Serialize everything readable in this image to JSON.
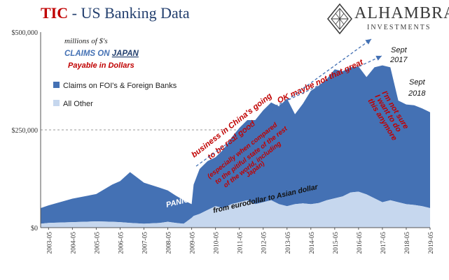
{
  "header": {
    "title_prefix": "TIC",
    "title_rest": " - US Banking Data",
    "logo_name": "ALHAMBRA",
    "logo_sub": "INVESTMENTS"
  },
  "colors": {
    "all_other": "#c6d7ee",
    "foreign_banks": "#4471b4",
    "annotation_red": "#c00000",
    "title_blue": "#233f6e"
  },
  "chart_data": {
    "type": "area",
    "stacked": true,
    "units_note": "millions of $'s",
    "subtitle_prefix": "CLAIMS ON ",
    "subtitle_country": "JAPAN",
    "subtitle_sub": "Payable in Dollars",
    "y_ticks": [
      "$0",
      "$250,000",
      "$500,000"
    ],
    "ylim": [
      0,
      500000
    ],
    "grid": "horizontal dashed at $250,000",
    "x_ticks": [
      "2003-05",
      "2004-05",
      "2005-05",
      "2006-05",
      "2007-05",
      "2008-05",
      "2009-05",
      "2010-05",
      "2011-05",
      "2012-05",
      "2013-05",
      "2014-05",
      "2015-05",
      "2016-05",
      "2017-05",
      "2018-05",
      "2019-05"
    ],
    "x": [
      "2003-01",
      "2003-05",
      "2004-05",
      "2005-05",
      "2006-01",
      "2006-05",
      "2006-10",
      "2007-05",
      "2008-01",
      "2008-05",
      "2008-09",
      "2009-01",
      "2009-05",
      "2009-06",
      "2009-09",
      "2010-01",
      "2010-05",
      "2010-09",
      "2011-01",
      "2011-05",
      "2011-09",
      "2012-01",
      "2012-05",
      "2012-09",
      "2013-01",
      "2013-05",
      "2013-09",
      "2014-01",
      "2014-05",
      "2014-09",
      "2015-01",
      "2015-05",
      "2015-09",
      "2016-01",
      "2016-05",
      "2016-09",
      "2017-01",
      "2017-05",
      "2017-09",
      "2018-01",
      "2018-05",
      "2018-09",
      "2019-01",
      "2019-05"
    ],
    "series": [
      {
        "name": "All Other",
        "values": [
          10000,
          12000,
          14000,
          16000,
          15000,
          14000,
          12000,
          10000,
          12000,
          15000,
          12000,
          10000,
          25000,
          30000,
          35000,
          45000,
          55000,
          50000,
          60000,
          65000,
          70000,
          60000,
          65000,
          70000,
          60000,
          55000,
          60000,
          62000,
          60000,
          63000,
          70000,
          75000,
          80000,
          90000,
          92000,
          85000,
          75000,
          65000,
          70000,
          65000,
          60000,
          58000,
          55000,
          50000
        ]
      },
      {
        "name": "Claims on FOI's & Foreign Banks",
        "values": [
          40000,
          45000,
          60000,
          70000,
          95000,
          105000,
          130000,
          105000,
          90000,
          80000,
          70000,
          60000,
          35000,
          80000,
          115000,
          125000,
          125000,
          150000,
          170000,
          190000,
          205000,
          215000,
          235000,
          250000,
          250000,
          275000,
          230000,
          255000,
          290000,
          300000,
          310000,
          330000,
          320000,
          320000,
          320000,
          300000,
          335000,
          350000,
          340000,
          260000,
          255000,
          255000,
          250000,
          245000
        ]
      }
    ],
    "annotations": [
      {
        "text": "business in China's going",
        "color": "red"
      },
      {
        "text": "to be real good",
        "color": "red"
      },
      {
        "text": "(especially when compared",
        "color": "red"
      },
      {
        "text": "to the pitiful state of the rest",
        "color": "red"
      },
      {
        "text": "of the world, including",
        "color": "red"
      },
      {
        "text": "Japan)",
        "color": "red"
      },
      {
        "text": "OK maybe not that great",
        "color": "red"
      },
      {
        "text": "I'm not sure",
        "color": "red"
      },
      {
        "text": "I want to do",
        "color": "red"
      },
      {
        "text": "this anymore",
        "color": "red"
      },
      {
        "text": "Sept",
        "color": "black"
      },
      {
        "text": "2017",
        "color": "black"
      },
      {
        "text": "Sept",
        "color": "black"
      },
      {
        "text": "2018",
        "color": "black"
      },
      {
        "text": "PANIC",
        "color": "white"
      },
      {
        "text": "from eurodollar to Asian dollar",
        "color": "black"
      }
    ]
  }
}
